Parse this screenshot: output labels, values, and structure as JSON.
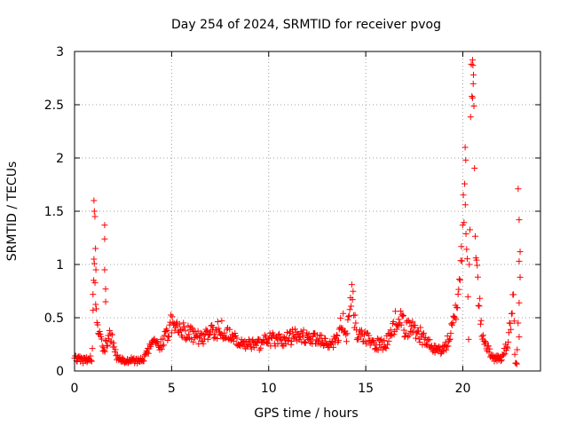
{
  "chart_data": {
    "type": "scatter",
    "title": "Day 254 of 2024, SRMTID for receiver pvog",
    "xlabel": "GPS time / hours",
    "ylabel": "SRMTID / TECUs",
    "xlim": [
      0,
      24
    ],
    "ylim": [
      0,
      3
    ],
    "x_ticks": [
      0,
      5,
      10,
      15,
      20
    ],
    "x_tick_labels": [
      "0",
      "5",
      "10",
      "15",
      "20"
    ],
    "y_ticks": [
      0,
      0.5,
      1,
      1.5,
      2,
      2.5,
      3
    ],
    "y_tick_labels": [
      "0",
      "0.5",
      "1",
      "1.5",
      "2",
      "2.5",
      "3"
    ],
    "grid": true,
    "marker": "+",
    "marker_color": "#ff0000",
    "series": [
      {
        "name": "SRMTID",
        "profile_hours": [
          0,
          0.5,
          0.9,
          1.0,
          1.1,
          1.2,
          1.3,
          1.5,
          1.8,
          2.0,
          2.2,
          2.5,
          3.0,
          3.5,
          4.0,
          4.5,
          5.0,
          5.5,
          6.0,
          6.5,
          7.0,
          7.5,
          8.0,
          8.5,
          9.0,
          9.5,
          10.0,
          10.5,
          11.0,
          11.5,
          12.0,
          12.5,
          13.0,
          13.5,
          13.8,
          14.0,
          14.3,
          14.5,
          15.0,
          15.5,
          16.0,
          16.3,
          16.7,
          17.0,
          17.5,
          18.0,
          18.5,
          19.0,
          19.3,
          19.6,
          19.8,
          20.0,
          20.1,
          20.3,
          20.45,
          20.55,
          20.7,
          20.9,
          21.0,
          21.3,
          21.6,
          22.0,
          22.3,
          22.5,
          22.6,
          22.7,
          22.8
        ],
        "profile_values": [
          0.12,
          0.1,
          0.12,
          0.9,
          0.55,
          0.35,
          0.3,
          0.2,
          0.35,
          0.25,
          0.12,
          0.1,
          0.1,
          0.1,
          0.25,
          0.25,
          0.45,
          0.4,
          0.35,
          0.3,
          0.35,
          0.4,
          0.35,
          0.25,
          0.25,
          0.25,
          0.3,
          0.3,
          0.3,
          0.35,
          0.3,
          0.3,
          0.25,
          0.3,
          0.5,
          0.3,
          0.7,
          0.35,
          0.3,
          0.25,
          0.25,
          0.35,
          0.55,
          0.4,
          0.4,
          0.3,
          0.2,
          0.2,
          0.3,
          0.5,
          0.8,
          1.3,
          2.0,
          0.35,
          2.8,
          2.3,
          1.0,
          0.5,
          0.35,
          0.2,
          0.12,
          0.12,
          0.25,
          0.5,
          0.65,
          0.05,
          0.05
        ],
        "outliers": [
          {
            "x": 1.0,
            "y": 1.6
          },
          {
            "x": 1.02,
            "y": 1.5
          },
          {
            "x": 1.05,
            "y": 1.45
          },
          {
            "x": 1.08,
            "y": 1.15
          },
          {
            "x": 1.0,
            "y": 1.05
          },
          {
            "x": 1.1,
            "y": 0.95
          },
          {
            "x": 0.95,
            "y": 0.72
          },
          {
            "x": 1.55,
            "y": 1.37
          },
          {
            "x": 1.55,
            "y": 1.24
          },
          {
            "x": 1.55,
            "y": 0.95
          },
          {
            "x": 1.6,
            "y": 0.77
          },
          {
            "x": 1.6,
            "y": 0.65
          },
          {
            "x": 22.85,
            "y": 1.71
          },
          {
            "x": 22.9,
            "y": 1.42
          },
          {
            "x": 22.95,
            "y": 1.12
          },
          {
            "x": 22.9,
            "y": 1.03
          },
          {
            "x": 22.95,
            "y": 0.88
          },
          {
            "x": 22.9,
            "y": 0.64
          },
          {
            "x": 22.85,
            "y": 0.45
          },
          {
            "x": 22.9,
            "y": 0.32
          },
          {
            "x": 22.8,
            "y": 0.2
          },
          {
            "x": 20.5,
            "y": 2.92
          },
          {
            "x": 20.52,
            "y": 2.87
          },
          {
            "x": 20.55,
            "y": 2.78
          },
          {
            "x": 20.12,
            "y": 2.1
          },
          {
            "x": 20.15,
            "y": 1.98
          }
        ]
      }
    ]
  }
}
